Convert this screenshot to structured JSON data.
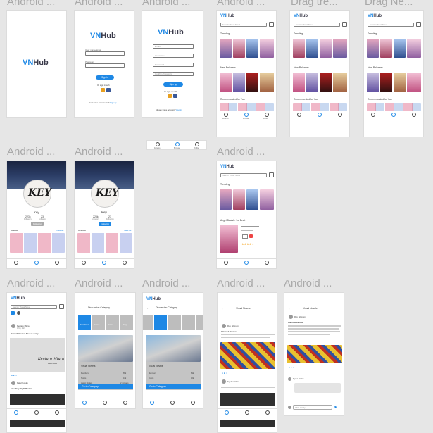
{
  "frame_labels": [
    "Android ...",
    "Android ...",
    "Android ...",
    "Android ...",
    "Drag tre...",
    "Drag Ne...",
    "Android ...",
    "Android ...",
    "Android ...",
    "Android ...",
    "Android ...",
    "Android ...",
    "Android ...",
    "Android ..."
  ],
  "brand": {
    "vn": "VN",
    "hub": "Hub"
  },
  "login": {
    "username_label": "User name/Email",
    "password_label": "Password",
    "button": "Sign in",
    "or": "Or sign in with",
    "no_account": "Don't have an account?",
    "sign_up": "Sign up"
  },
  "signup": {
    "fields": [
      "Email",
      "Username",
      "Password",
      "Confirm Password"
    ],
    "button": "Sign up",
    "or": "Or sign up with",
    "have_account": "Already have account?",
    "log_in": "Log in"
  },
  "home": {
    "search_placeholder": "Search Visual Novel",
    "trending": "Trending",
    "new_releases": "New Releases",
    "recommended": "Recommended for You"
  },
  "nav": {
    "forums": "Forums",
    "browse": "Browse",
    "profile": "Profile"
  },
  "profile": {
    "name": "Key",
    "logo": "KEY",
    "followers": "223k",
    "following": "23",
    "followers_label": "Followers",
    "following_label": "Following",
    "follow_button": "Following",
    "release_label": "Release",
    "view_all": "View all"
  },
  "detail": {
    "title": "Angel Beats! - 1st Beat -"
  },
  "forum": {
    "author": "Kentaro Miura",
    "author_sub": "Artist, 2021",
    "caption": "Kentaro Miura",
    "caption_sub": "1966–2021",
    "post2_author": "Kata Kyouko",
    "post2_title": "Fate Stay Night Review",
    "post_title": "Berserk Creator Passes Away"
  },
  "discussion": {
    "title": "Discussion Category",
    "cats": [
      "Visual Novels",
      "Games",
      "Anime",
      "Manga"
    ],
    "section": "Visual Novels",
    "rows": [
      {
        "label": "Members",
        "value": "89k"
      },
      {
        "label": "Topics",
        "value": "16k"
      },
      {
        "label": "Latest Update",
        "value": "2 min ago"
      }
    ],
    "goto": "Go to Category"
  },
  "vnforum": {
    "title": "Visual Novels",
    "user": "Ryo Shimomi",
    "comment_author": "Kyoko Oshiro",
    "comment_placeholder": "Write a reply...",
    "post_title": "Clannad Review"
  },
  "colors": {
    "brand": "#1e88e5",
    "dark": "#3a3a4a",
    "canvas": "#e6e6e6"
  }
}
